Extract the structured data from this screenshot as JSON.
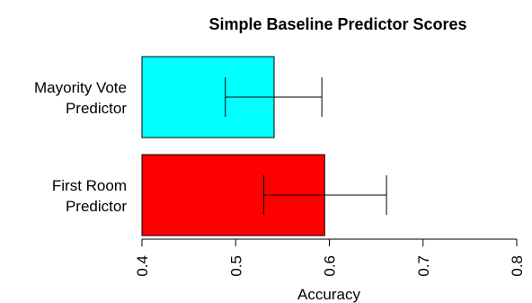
{
  "chart_data": {
    "type": "bar",
    "orientation": "horizontal",
    "title": "Simple Baseline Predictor Scores",
    "xlabel": "Accuracy",
    "ylabel": "",
    "xlim": [
      0.4,
      0.8
    ],
    "xticks": [
      0.4,
      0.5,
      0.6,
      0.7,
      0.8
    ],
    "xtick_labels": [
      "0.4",
      "0.5",
      "0.6",
      "0.7",
      "0.8"
    ],
    "grid": false,
    "categories": [
      {
        "lines": [
          "Mayority Vote",
          "Predictor"
        ],
        "value": 0.541,
        "error_low": 0.489,
        "error_high": 0.592,
        "color": "#00FFFF"
      },
      {
        "lines": [
          "First Room",
          "Predictor"
        ],
        "value": 0.595,
        "error_low": 0.53,
        "error_high": 0.661,
        "color": "#FF0000"
      }
    ]
  }
}
